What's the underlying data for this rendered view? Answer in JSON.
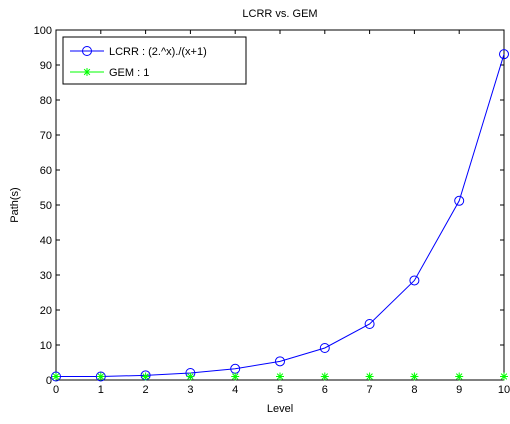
{
  "chart_data": {
    "type": "line",
    "title": "LCRR vs. GEM",
    "xlabel": "Level",
    "ylabel": "Path(s)",
    "x": [
      0,
      1,
      2,
      3,
      4,
      5,
      6,
      7,
      8,
      9,
      10
    ],
    "xlim": [
      0,
      10
    ],
    "ylim": [
      0,
      100
    ],
    "xticks": [
      "0",
      "1",
      "2",
      "3",
      "4",
      "5",
      "6",
      "7",
      "8",
      "9",
      "10"
    ],
    "yticks": [
      "0",
      "10",
      "20",
      "30",
      "40",
      "50",
      "60",
      "70",
      "80",
      "90",
      "100"
    ],
    "grid": false,
    "legend_position": "top-left",
    "series": [
      {
        "name": "LCRR",
        "formula": "(2.^x)./(x+1)",
        "legend_sep": " : ",
        "color": "#0000ff",
        "marker": "circle",
        "line": true,
        "values": [
          1,
          1,
          1.333,
          2,
          3.2,
          5.333,
          9.143,
          16,
          28.444,
          51.2,
          93.091
        ]
      },
      {
        "name": "GEM",
        "formula": "1",
        "legend_sep": " : ",
        "color": "#00ff00",
        "marker": "star",
        "line": false,
        "values": [
          1,
          1,
          1,
          1,
          1,
          1,
          1,
          1,
          1,
          1,
          1
        ]
      }
    ]
  }
}
